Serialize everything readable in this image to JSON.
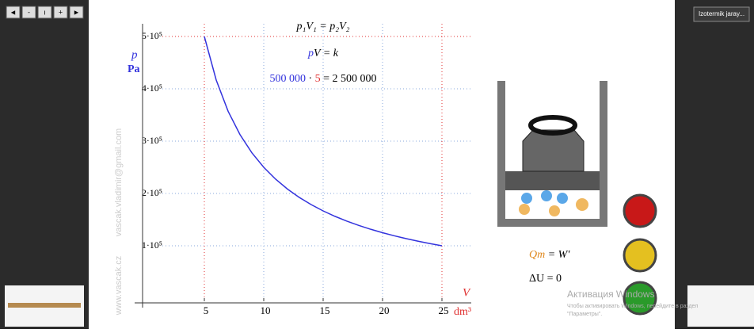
{
  "nav_buttons": [
    "◄",
    "-",
    "ı",
    "+",
    "►"
  ],
  "menu_button": "Izotermik jaray...",
  "watermark_email": "vascak.vladimir@gmail.com",
  "watermark_site": "www.vascak.cz",
  "formula_1": "p₁V₁ = p₂V₂",
  "formula_2": {
    "p": "p",
    "rest": "V = k"
  },
  "formula_3": {
    "pressure": "500 000",
    "dot": "·",
    "volume": "5",
    "result": "= 2 500 000"
  },
  "heat_equation": {
    "q": "Qт",
    "rest": "= W′"
  },
  "energy_equation": "ΔU = 0",
  "activation": {
    "title": "Активация Windows",
    "text_1": "Чтобы активировать Windows, перейдите в раздел",
    "text_2": "\"Параметры\"."
  },
  "chart_data": {
    "type": "line",
    "y_label": "p",
    "y_unit": "Pa",
    "x_label": "V",
    "x_unit": "dm³",
    "x": [
      5,
      6,
      7,
      8,
      9,
      10,
      11,
      12,
      13,
      14,
      15,
      16,
      17,
      18,
      19,
      20,
      21,
      22,
      23,
      24,
      25
    ],
    "series": [
      {
        "name": "p",
        "color": "#3333dd",
        "values": [
          500000,
          416667,
          357143,
          312500,
          277778,
          250000,
          227273,
          208333,
          192308,
          178571,
          166667,
          156250,
          147059,
          138889,
          131579,
          125000,
          119048,
          113636,
          108696,
          104167,
          100000
        ]
      }
    ],
    "xlim": [
      0,
      27
    ],
    "ylim": [
      0,
      550000
    ],
    "xticks": [
      5,
      10,
      15,
      20,
      25
    ],
    "yticks": [
      {
        "value": 100000,
        "label": "1·10⁵"
      },
      {
        "value": 200000,
        "label": "2·10⁵"
      },
      {
        "value": 300000,
        "label": "3·10⁵"
      },
      {
        "value": 400000,
        "label": "4·10⁵"
      },
      {
        "value": 500000,
        "label": "5·10⁵"
      }
    ],
    "grid": true
  }
}
